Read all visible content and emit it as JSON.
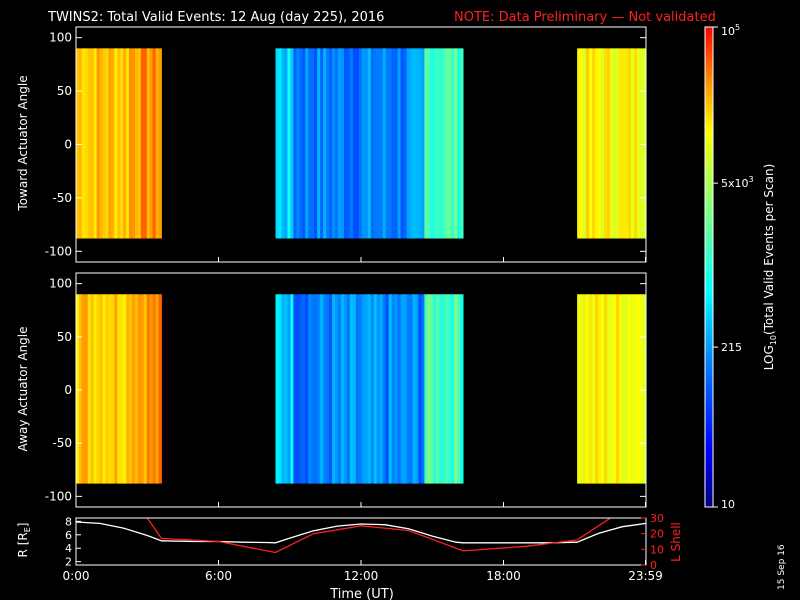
{
  "title": {
    "main": "TWINS2: Total Valid Events: 12 Aug (day 225), 2016",
    "note": "NOTE: Data Preliminary — Not validated"
  },
  "stamp": "15 Sep 16",
  "colors": {
    "background": "#000000",
    "axes": "#ffffff",
    "note": "#ff2020",
    "r_line": "#ffffff",
    "lshell_line": "#ff2020"
  },
  "chart_data": [
    {
      "type": "heatmap",
      "name": "toward-panel",
      "ylabel": "Toward Actuator Angle",
      "ylim": [
        -110,
        110
      ],
      "yticks": [
        100,
        50,
        0,
        -50,
        -100
      ],
      "xlim": [
        0,
        24
      ],
      "angle_range": [
        -88,
        90
      ],
      "segments": [
        {
          "t_start": 0.0,
          "t_end": 3.6,
          "level": "high"
        },
        {
          "t_start": 8.4,
          "t_end": 16.3,
          "level": "low"
        },
        {
          "t_start": 21.1,
          "t_end": 24.0,
          "level": "mid"
        }
      ]
    },
    {
      "type": "heatmap",
      "name": "away-panel",
      "ylabel": "Away Actuator Angle",
      "ylim": [
        -110,
        110
      ],
      "yticks": [
        100,
        50,
        0,
        -50,
        -100
      ],
      "xlim": [
        0,
        24
      ],
      "angle_range": [
        -88,
        90
      ],
      "segments": [
        {
          "t_start": 0.0,
          "t_end": 3.6,
          "level": "high"
        },
        {
          "t_start": 8.4,
          "t_end": 16.3,
          "level": "low"
        },
        {
          "t_start": 21.1,
          "t_end": 24.0,
          "level": "mid"
        }
      ]
    },
    {
      "type": "line",
      "name": "orbit-panel",
      "xlabel": "Time (UT)",
      "xlim": [
        0,
        24
      ],
      "xticks": [
        "0:00",
        "6:00",
        "12:00",
        "18:00",
        "23:59"
      ],
      "xtick_values": [
        0,
        6,
        12,
        18,
        23.98
      ],
      "left_axis": {
        "label_r": "R [R",
        "label_sub": "E",
        "label_end": "]",
        "ylim": [
          1.5,
          8.5
        ],
        "yticks": [
          2,
          4,
          6,
          8
        ]
      },
      "right_axis": {
        "label": "L Shell",
        "ylim": [
          0,
          30
        ],
        "yticks": [
          0,
          10,
          20,
          30
        ]
      },
      "series": [
        {
          "axis": "left",
          "x": [
            0,
            1,
            2,
            3,
            3.6,
            5,
            6,
            7,
            8,
            8.4,
            9,
            10,
            11,
            12,
            13,
            14,
            15,
            16,
            16.3,
            17,
            18,
            19,
            20,
            21.1,
            22,
            23,
            24
          ],
          "y": [
            7.9,
            7.7,
            7.0,
            5.9,
            5.1,
            5.0,
            5.0,
            4.9,
            4.85,
            4.8,
            5.5,
            6.6,
            7.3,
            7.6,
            7.5,
            6.9,
            5.8,
            4.9,
            4.8,
            4.8,
            4.8,
            4.8,
            4.8,
            4.9,
            6.2,
            7.2,
            7.7
          ]
        },
        {
          "axis": "right",
          "x": [
            3.0,
            3.6,
            6,
            8.4,
            10,
            12,
            14,
            16.3,
            19,
            21.1,
            22.5
          ],
          "y": [
            30,
            17,
            15,
            8,
            20,
            25,
            22,
            9,
            12,
            16,
            30
          ]
        }
      ]
    },
    {
      "type": "heatmap",
      "name": "colorbar",
      "ylabel": "LOG",
      "ylabel_sub": "10",
      "ylabel_rest": "(Total Valid Events per Scan)",
      "ticks": [
        {
          "value": 10,
          "base": "10",
          "exp": ""
        },
        {
          "value": 215,
          "base": "215",
          "exp": ""
        },
        {
          "value": 5000,
          "base": "5x10",
          "exp": "3"
        },
        {
          "value": 100000,
          "base": "10",
          "exp": "5"
        }
      ],
      "range": [
        10,
        100000
      ]
    }
  ]
}
